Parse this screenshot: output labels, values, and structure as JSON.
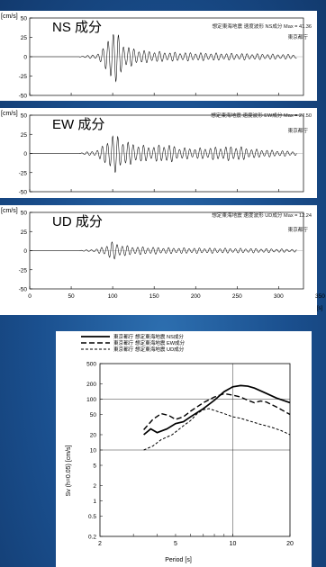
{
  "chart_data": [
    {
      "type": "line",
      "panel": "NS",
      "title": "NS 成分",
      "note": "想定東海地震 速度波形 NS成分 Max = 41.36",
      "location": "東京都庁",
      "ylabel_unit": "[cm/s]",
      "ylim": [
        -50,
        50
      ],
      "yticks": [
        50,
        25,
        0,
        -25,
        -50
      ],
      "xlim": [
        0,
        330
      ],
      "envelope": [
        [
          60,
          0.5
        ],
        [
          80,
          3
        ],
        [
          90,
          12
        ],
        [
          95,
          28
        ],
        [
          98,
          40
        ],
        [
          102,
          38
        ],
        [
          108,
          26
        ],
        [
          115,
          16
        ],
        [
          125,
          11
        ],
        [
          140,
          8
        ],
        [
          170,
          6
        ],
        [
          220,
          5
        ],
        [
          270,
          4
        ],
        [
          320,
          3
        ]
      ]
    },
    {
      "type": "line",
      "panel": "EW",
      "title": "EW 成分",
      "note": "想定東海地震 速度波形 EW成分 Max = 27.50",
      "location": "東京都庁",
      "ylabel_unit": "[cm/s]",
      "ylim": [
        -50,
        50
      ],
      "yticks": [
        50,
        25,
        0,
        -25,
        -50
      ],
      "xlim": [
        0,
        330
      ],
      "envelope": [
        [
          60,
          0.5
        ],
        [
          80,
          4
        ],
        [
          88,
          10
        ],
        [
          95,
          22
        ],
        [
          100,
          26
        ],
        [
          106,
          24
        ],
        [
          115,
          16
        ],
        [
          125,
          14
        ],
        [
          135,
          11
        ],
        [
          150,
          10
        ],
        [
          165,
          13
        ],
        [
          180,
          8
        ],
        [
          200,
          7
        ],
        [
          230,
          9
        ],
        [
          250,
          10
        ],
        [
          270,
          6
        ],
        [
          300,
          4
        ],
        [
          320,
          3
        ]
      ]
    },
    {
      "type": "line",
      "panel": "UD",
      "title": "UD 成分",
      "note": "想定東海地震 速度波形 UD成分 Max = 12.24",
      "location": "東京都庁",
      "ylabel_unit": "[cm/s]",
      "ylim": [
        -50,
        50
      ],
      "yticks": [
        50,
        25,
        0,
        -25,
        -50
      ],
      "xlim": [
        0,
        330
      ],
      "xticks": [
        0,
        50,
        100,
        150,
        200,
        250,
        300,
        350
      ],
      "xunit": "[s]",
      "envelope": [
        [
          60,
          0.3
        ],
        [
          80,
          2
        ],
        [
          90,
          6
        ],
        [
          96,
          11
        ],
        [
          100,
          12
        ],
        [
          108,
          9
        ],
        [
          120,
          6
        ],
        [
          140,
          5
        ],
        [
          170,
          4
        ],
        [
          220,
          3.5
        ],
        [
          270,
          3
        ],
        [
          320,
          2
        ]
      ]
    },
    {
      "type": "line",
      "panel": "spectrum",
      "xscale": "log",
      "yscale": "log",
      "xlim": [
        2,
        20
      ],
      "ylim": [
        0.2,
        500
      ],
      "xticks": [
        2,
        5,
        10,
        20
      ],
      "yticks": [
        500,
        200,
        100,
        50,
        20,
        10,
        5,
        2,
        1,
        0.5,
        0.2
      ],
      "xlabel": "Period [s]",
      "ylabel": "Sv (h=0.05) [cm/s]",
      "legend_position": "top",
      "series": [
        {
          "name": "東京都庁 想定東海地震 NS成分",
          "dash": "solid",
          "points": [
            [
              3.4,
              20
            ],
            [
              3.7,
              26
            ],
            [
              4.0,
              22
            ],
            [
              4.5,
              26
            ],
            [
              5.0,
              33
            ],
            [
              5.5,
              36
            ],
            [
              6.0,
              45
            ],
            [
              7.0,
              65
            ],
            [
              8.0,
              95
            ],
            [
              9.0,
              140
            ],
            [
              10.0,
              175
            ],
            [
              11.0,
              185
            ],
            [
              12.0,
              180
            ],
            [
              13.0,
              165
            ],
            [
              15.0,
              130
            ],
            [
              17.0,
              105
            ],
            [
              20.0,
              85
            ]
          ]
        },
        {
          "name": "東京都庁 想定東海地震 EW成分",
          "dash": "dashed",
          "points": [
            [
              3.4,
              25
            ],
            [
              3.8,
              40
            ],
            [
              4.2,
              52
            ],
            [
              4.6,
              48
            ],
            [
              5.0,
              40
            ],
            [
              5.5,
              45
            ],
            [
              6.0,
              58
            ],
            [
              7.0,
              85
            ],
            [
              8.0,
              110
            ],
            [
              9.0,
              128
            ],
            [
              10.0,
              120
            ],
            [
              11.0,
              110
            ],
            [
              12.0,
              95
            ],
            [
              13.0,
              85
            ],
            [
              14.0,
              92
            ],
            [
              15.0,
              88
            ],
            [
              17.0,
              70
            ],
            [
              20.0,
              50
            ]
          ]
        },
        {
          "name": "東京都庁 想定東海地震 UD成分",
          "dash": "dotted",
          "points": [
            [
              3.4,
              10
            ],
            [
              3.8,
              12
            ],
            [
              4.2,
              16
            ],
            [
              4.8,
              20
            ],
            [
              5.5,
              30
            ],
            [
              6.0,
              38
            ],
            [
              6.5,
              52
            ],
            [
              7.0,
              62
            ],
            [
              7.5,
              65
            ],
            [
              8.0,
              60
            ],
            [
              9.0,
              52
            ],
            [
              10.0,
              45
            ],
            [
              11.0,
              42
            ],
            [
              12.0,
              38
            ],
            [
              14.0,
              32
            ],
            [
              16.0,
              28
            ],
            [
              18.0,
              24
            ],
            [
              20.0,
              20
            ]
          ]
        }
      ]
    }
  ]
}
